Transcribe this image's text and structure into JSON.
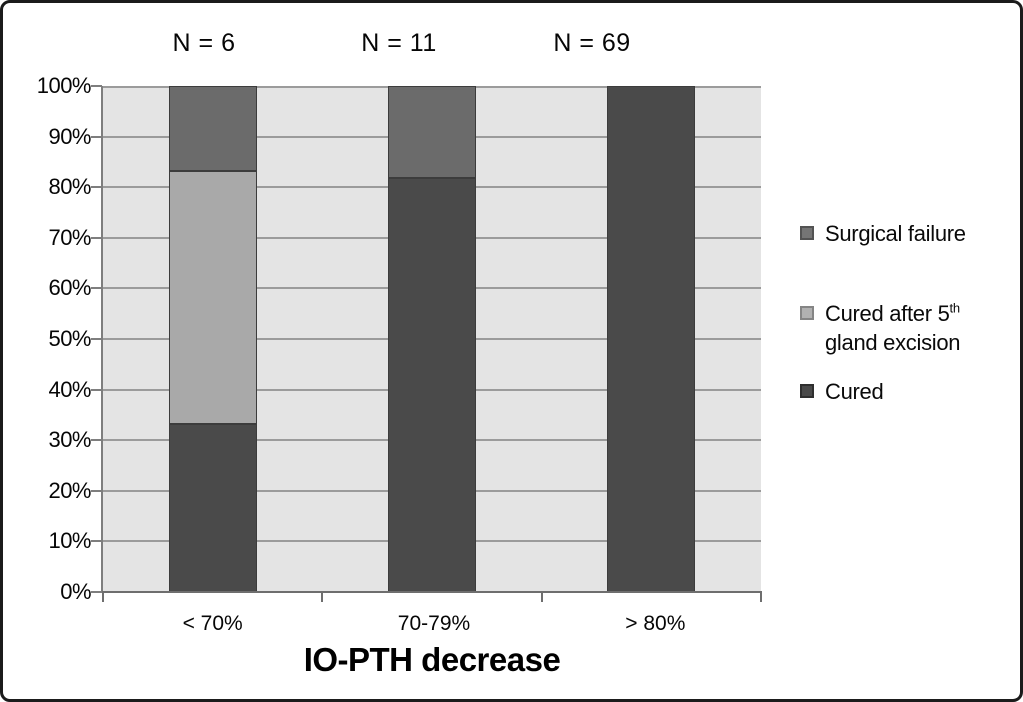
{
  "figure": {
    "n_labels": [
      "N = 6",
      "N = 11",
      "N = 69"
    ],
    "legend": {
      "items": [
        {
          "label": "Surgical failure"
        },
        {
          "label_pre": "Cured after 5",
          "label_sup": "th",
          "label_line2": "gland excision"
        },
        {
          "label": "Cured"
        }
      ]
    },
    "colors": {
      "plot_background": "#e4e4e4",
      "gridline": "#9b9b9b",
      "axis": "#6e6e6e",
      "cured": "#4a4a4a",
      "cured_after_5th": "#a9a9a9",
      "surgical_failure": "#6b6b6b",
      "bar_border": "#3c3c3c"
    }
  },
  "chart_data": {
    "type": "bar",
    "stacked": true,
    "title": "",
    "xlabel": "IO-PTH decrease",
    "ylabel": "",
    "categories": [
      "< 70%",
      "70-79%",
      "> 80%"
    ],
    "group_counts": [
      6,
      11,
      69
    ],
    "series": [
      {
        "name": "Cured",
        "color": "#4a4a4a",
        "values": [
          33.3,
          81.8,
          100
        ]
      },
      {
        "name": "Cured after 5th gland excision",
        "color": "#a9a9a9",
        "values": [
          50.0,
          0,
          0
        ]
      },
      {
        "name": "Surgical failure",
        "color": "#6b6b6b",
        "values": [
          16.7,
          18.2,
          0
        ]
      }
    ],
    "ylim": [
      0,
      100
    ],
    "ytick_step": 10,
    "ytick_labels": [
      "0%",
      "10%",
      "20%",
      "30%",
      "40%",
      "50%",
      "60%",
      "70%",
      "80%",
      "90%",
      "100%"
    ],
    "grid": true,
    "legend_position": "right"
  }
}
